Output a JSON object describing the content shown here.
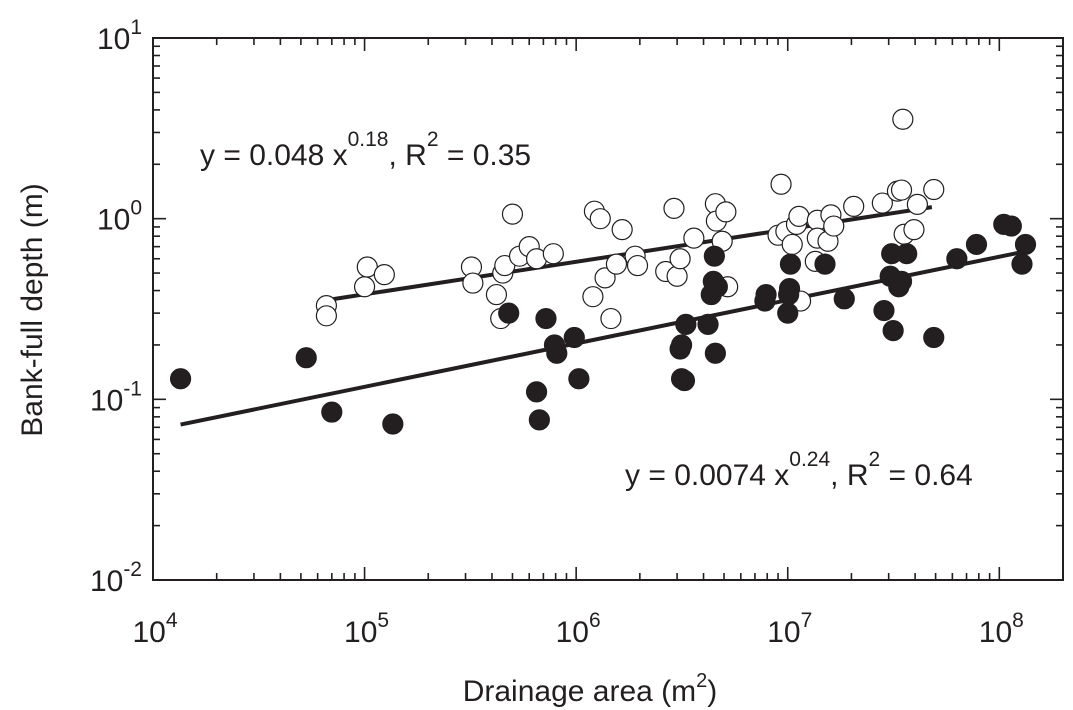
{
  "chart_data": {
    "type": "scatter",
    "title": "",
    "xlabel": "Drainage area (m",
    "xlabel_sup": "2",
    "xlabel_suffix": ")",
    "ylabel": "Bank-full depth (m)",
    "x_scale": "log",
    "y_scale": "log",
    "xlim": [
      10000,
      200000000
    ],
    "ylim": [
      0.01,
      10
    ],
    "x_ticks": [
      {
        "value": 10000,
        "base": "10",
        "exp": "4"
      },
      {
        "value": 100000,
        "base": "10",
        "exp": "5"
      },
      {
        "value": 1000000,
        "base": "10",
        "exp": "6"
      },
      {
        "value": 10000000,
        "base": "10",
        "exp": "7"
      },
      {
        "value": 100000000,
        "base": "10",
        "exp": "8"
      }
    ],
    "y_ticks": [
      {
        "value": 0.01,
        "base": "10",
        "exp": "-2"
      },
      {
        "value": 0.1,
        "base": "10",
        "exp": "-1"
      },
      {
        "value": 1,
        "base": "10",
        "exp": "0"
      },
      {
        "value": 10,
        "base": "10",
        "exp": "1"
      }
    ],
    "grid": false,
    "colors": {
      "axis": "#231f20",
      "filled": "#231f20",
      "open_fill": "#ffffff"
    },
    "annotations": [
      {
        "id": "open",
        "parts": [
          "y = 0.048 x",
          "0.18",
          ", R",
          "2",
          " = 0.35"
        ]
      },
      {
        "id": "filled",
        "parts": [
          "y = 0.0074 x",
          "0.24",
          ", R",
          "2",
          " = 0.64"
        ]
      }
    ],
    "series": [
      {
        "marker": "open-circle",
        "fit": {
          "coef": 0.048,
          "exp": 0.18,
          "x_range": [
            65000,
            48000000
          ]
        },
        "points": [
          [
            66000,
            0.33
          ],
          [
            66000,
            0.29
          ],
          [
            100000,
            0.42
          ],
          [
            103000,
            0.54
          ],
          [
            124000,
            0.49
          ],
          [
            320000,
            0.54
          ],
          [
            325000,
            0.44
          ],
          [
            420000,
            0.38
          ],
          [
            440000,
            0.28
          ],
          [
            450000,
            0.5
          ],
          [
            460000,
            0.55
          ],
          [
            500000,
            1.06
          ],
          [
            540000,
            0.62
          ],
          [
            600000,
            0.7
          ],
          [
            650000,
            0.6
          ],
          [
            780000,
            0.64
          ],
          [
            1200000,
            0.37
          ],
          [
            1220000,
            1.1
          ],
          [
            1300000,
            1.0
          ],
          [
            1370000,
            0.47
          ],
          [
            1460000,
            0.28
          ],
          [
            1550000,
            0.56
          ],
          [
            1650000,
            0.87
          ],
          [
            1900000,
            0.62
          ],
          [
            1950000,
            0.55
          ],
          [
            2650000,
            0.51
          ],
          [
            2900000,
            1.14
          ],
          [
            3000000,
            0.48
          ],
          [
            3100000,
            0.6
          ],
          [
            3600000,
            0.78
          ],
          [
            4550000,
            1.21
          ],
          [
            4600000,
            0.97
          ],
          [
            4900000,
            0.75
          ],
          [
            5100000,
            1.09
          ],
          [
            5200000,
            0.42
          ],
          [
            9000000,
            0.81
          ],
          [
            9300000,
            1.55
          ],
          [
            9800000,
            0.85
          ],
          [
            10500000,
            0.72
          ],
          [
            11000000,
            0.93
          ],
          [
            11300000,
            1.03
          ],
          [
            11500000,
            0.35
          ],
          [
            13500000,
            0.58
          ],
          [
            13800000,
            0.98
          ],
          [
            13800000,
            0.78
          ],
          [
            15500000,
            0.75
          ],
          [
            16000000,
            1.05
          ],
          [
            16500000,
            0.91
          ],
          [
            20500000,
            1.17
          ],
          [
            28000000,
            1.22
          ],
          [
            33000000,
            1.42
          ],
          [
            34500000,
            1.44
          ],
          [
            35000000,
            3.55
          ],
          [
            35500000,
            0.82
          ],
          [
            39500000,
            0.87
          ],
          [
            41000000,
            1.2
          ],
          [
            49000000,
            1.45
          ]
        ]
      },
      {
        "marker": "filled-circle",
        "fit": {
          "coef": 0.0074,
          "exp": 0.24,
          "x_range": [
            13500,
            133000000
          ]
        },
        "points": [
          [
            13500,
            0.13
          ],
          [
            53000,
            0.17
          ],
          [
            70000,
            0.085
          ],
          [
            136000,
            0.073
          ],
          [
            480000,
            0.3
          ],
          [
            650000,
            0.11
          ],
          [
            670000,
            0.077
          ],
          [
            720000,
            0.28
          ],
          [
            790000,
            0.2
          ],
          [
            810000,
            0.18
          ],
          [
            980000,
            0.22
          ],
          [
            1030000,
            0.13
          ],
          [
            3100000,
            0.19
          ],
          [
            3150000,
            0.2
          ],
          [
            3150000,
            0.13
          ],
          [
            3250000,
            0.127
          ],
          [
            3300000,
            0.26
          ],
          [
            4200000,
            0.26
          ],
          [
            4350000,
            0.38
          ],
          [
            4450000,
            0.45
          ],
          [
            4500000,
            0.62
          ],
          [
            4550000,
            0.18
          ],
          [
            4650000,
            0.42
          ],
          [
            7800000,
            0.35
          ],
          [
            7900000,
            0.38
          ],
          [
            10000000,
            0.3
          ],
          [
            10100000,
            0.38
          ],
          [
            10200000,
            0.41
          ],
          [
            10300000,
            0.56
          ],
          [
            15000000,
            0.56
          ],
          [
            18500000,
            0.36
          ],
          [
            28500000,
            0.31
          ],
          [
            30500000,
            0.48
          ],
          [
            31000000,
            0.64
          ],
          [
            31500000,
            0.24
          ],
          [
            33500000,
            0.42
          ],
          [
            34500000,
            0.45
          ],
          [
            36500000,
            0.64
          ],
          [
            49000000,
            0.22
          ],
          [
            63000000,
            0.6
          ],
          [
            78000000,
            0.72
          ],
          [
            105000000,
            0.93
          ],
          [
            114000000,
            0.91
          ],
          [
            128000000,
            0.56
          ],
          [
            133000000,
            0.72
          ]
        ]
      }
    ]
  }
}
